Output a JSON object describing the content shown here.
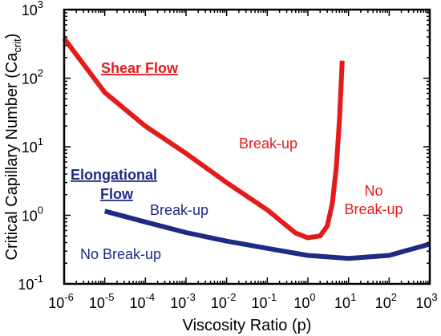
{
  "chart_data": {
    "type": "line",
    "xlabel": "Viscosity Ratio (p)",
    "ylabel_main": "Critical Capillary Number (Ca",
    "ylabel_sub": "crit",
    "ylabel_close": ")",
    "x_scale": "log",
    "y_scale": "log",
    "xlim": [
      1e-06,
      1000.0
    ],
    "ylim": [
      0.1,
      1000
    ],
    "grid": false,
    "x_ticks": [
      {
        "base": "10",
        "exp": "-6",
        "value": 1e-06
      },
      {
        "base": "10",
        "exp": "-5",
        "value": 1e-05
      },
      {
        "base": "10",
        "exp": "-4",
        "value": 0.0001
      },
      {
        "base": "10",
        "exp": "-3",
        "value": 0.001
      },
      {
        "base": "10",
        "exp": "-2",
        "value": 0.01
      },
      {
        "base": "10",
        "exp": "-1",
        "value": 0.1
      },
      {
        "base": "10",
        "exp": "0",
        "value": 1
      },
      {
        "base": "10",
        "exp": "1",
        "value": 10
      },
      {
        "base": "10",
        "exp": "2",
        "value": 100
      },
      {
        "base": "10",
        "exp": "3",
        "value": 1000
      }
    ],
    "y_ticks": [
      {
        "base": "10",
        "exp": "-1",
        "value": 0.1
      },
      {
        "base": "10",
        "exp": "0",
        "value": 1
      },
      {
        "base": "10",
        "exp": "1",
        "value": 10
      },
      {
        "base": "10",
        "exp": "2",
        "value": 100
      },
      {
        "base": "10",
        "exp": "3",
        "value": 1000
      }
    ],
    "series": [
      {
        "key": "shear",
        "color": "#e31b1b",
        "x": [
          1e-06,
          1e-05,
          0.0001,
          0.001,
          0.01,
          0.1,
          0.5,
          1,
          2,
          3,
          4,
          5,
          6,
          6.5,
          7
        ],
        "y": [
          380,
          62,
          20,
          8,
          3,
          1.2,
          0.55,
          0.47,
          0.5,
          0.7,
          1.5,
          5,
          25,
          70,
          180
        ]
      },
      {
        "key": "elongational",
        "color": "#1f2a84",
        "x": [
          1e-05,
          0.0001,
          0.001,
          0.01,
          0.1,
          1,
          10,
          100,
          1000
        ],
        "y": [
          1.15,
          0.8,
          0.56,
          0.42,
          0.33,
          0.26,
          0.235,
          0.26,
          0.38
        ]
      }
    ],
    "annotations": {
      "shear_flow": {
        "text": "Shear Flow",
        "color": "#e31b1b"
      },
      "elongational_line1": {
        "text": "Elongational",
        "color": "#1f2a84"
      },
      "elongational_line2": {
        "text": "Flow",
        "color": "#1f2a84"
      },
      "breakup_shear": {
        "text": "Break-up",
        "color": "#e31b1b"
      },
      "no_breakup_shear_line1": {
        "text": "No",
        "color": "#e31b1b"
      },
      "no_breakup_shear_line2": {
        "text": "Break-up",
        "color": "#e31b1b"
      },
      "breakup_elong": {
        "text": "Break-up",
        "color": "#1f2a84"
      },
      "no_breakup_elong": {
        "text": "No Break-up",
        "color": "#1f2a84"
      }
    }
  }
}
